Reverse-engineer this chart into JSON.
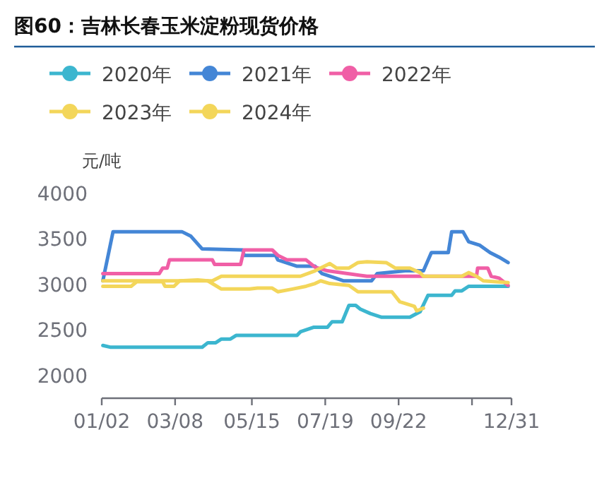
{
  "chart_data": {
    "type": "line",
    "title": "图60：吉林长春玉米淀粉现货价格",
    "ylabel": "元/吨",
    "xlim": [
      "--01-02",
      "--12-31"
    ],
    "xticks": [
      {
        "value": "--01-02",
        "label": "01/02"
      },
      {
        "value": "--03-08",
        "label": "03/08"
      },
      {
        "value": "--05-15",
        "label": "05/15"
      },
      {
        "value": "--07-19",
        "label": "07/19"
      },
      {
        "value": "--09-22",
        "label": "09/22"
      },
      {
        "value": "--11-26",
        "label": null
      },
      {
        "value": "--12-31",
        "label": "12/31"
      }
    ],
    "ylim": [
      1750,
      4000
    ],
    "yticks": [
      2000,
      2500,
      3000,
      3500,
      4000
    ],
    "grid": false,
    "legend": "top",
    "marker": "none",
    "line_style": "solid",
    "series": [
      {
        "name": "2020年",
        "color": "#3cb6cf",
        "x": [
          "--01-03",
          "--01-10",
          "--04-01",
          "--04-06",
          "--04-13",
          "--04-18",
          "--04-26",
          "--05-01",
          "--06-24",
          "--06-27",
          "--07-09",
          "--07-21",
          "--07-25",
          "--08-03",
          "--08-09",
          "--08-15",
          "--08-19",
          "--08-28",
          "--09-07",
          "--10-02",
          "--10-11",
          "--10-18",
          "--11-08",
          "--11-11",
          "--11-17",
          "--11-23",
          "--12-28"
        ],
        "values": [
          2330,
          2310,
          2310,
          2360,
          2360,
          2400,
          2400,
          2440,
          2440,
          2480,
          2530,
          2530,
          2590,
          2590,
          2770,
          2770,
          2730,
          2680,
          2640,
          2640,
          2700,
          2880,
          2880,
          2930,
          2930,
          2980,
          2980
        ]
      },
      {
        "name": "2021年",
        "color": "#4486d6",
        "x": [
          "--01-03",
          "--01-12",
          "--03-14",
          "--03-22",
          "--04-01",
          "--05-07",
          "--05-08",
          "--06-05",
          "--06-07",
          "--06-24",
          "--07-10",
          "--07-16",
          "--08-04",
          "--08-29",
          "--09-03",
          "--09-28",
          "--10-14",
          "--10-21",
          "--11-05",
          "--11-08",
          "--11-18",
          "--11-23",
          "--12-03",
          "--12-12",
          "--12-20",
          "--12-28"
        ],
        "values": [
          3040,
          3580,
          3580,
          3530,
          3390,
          3380,
          3320,
          3320,
          3270,
          3200,
          3200,
          3120,
          3040,
          3040,
          3120,
          3150,
          3150,
          3350,
          3350,
          3580,
          3580,
          3470,
          3430,
          3350,
          3300,
          3240
        ]
      },
      {
        "name": "2022年",
        "color": "#f05fa6",
        "x": [
          "--01-03",
          "--02-22",
          "--02-25",
          "--03-01",
          "--03-03",
          "--04-10",
          "--04-12",
          "--05-05",
          "--05-08",
          "--06-02",
          "--06-07",
          "--06-15",
          "--07-02",
          "--07-10",
          "--07-21",
          "--08-25",
          "--11-30",
          "--12-01",
          "--12-10",
          "--12-13",
          "--12-20",
          "--12-28"
        ],
        "values": [
          3120,
          3120,
          3180,
          3180,
          3270,
          3270,
          3220,
          3220,
          3380,
          3380,
          3320,
          3270,
          3270,
          3190,
          3150,
          3090,
          3090,
          3180,
          3180,
          3090,
          3070,
          2990
        ]
      },
      {
        "name": "2023年",
        "color": "#f3d65a",
        "x": [
          "--01-03",
          "--04-10",
          "--04-18",
          "--06-27",
          "--07-10",
          "--07-23",
          "--07-29",
          "--08-09",
          "--08-17",
          "--08-25",
          "--09-11",
          "--09-19",
          "--10-02",
          "--10-11",
          "--10-14",
          "--11-17",
          "--11-23",
          "--11-30",
          "--12-06",
          "--12-28"
        ],
        "values": [
          3040,
          3040,
          3090,
          3090,
          3150,
          3230,
          3180,
          3180,
          3240,
          3250,
          3240,
          3180,
          3180,
          3130,
          3090,
          3090,
          3130,
          3090,
          3040,
          3020
        ]
      },
      {
        "name": "2024年",
        "color": "#f3d65a",
        "x": [
          "--01-03",
          "--01-28",
          "--02-02",
          "--02-25",
          "--02-27",
          "--03-07",
          "--03-12",
          "--03-28",
          "--04-06",
          "--04-18",
          "--05-13",
          "--05-20",
          "--06-02",
          "--06-07",
          "--06-20",
          "--07-02",
          "--07-10",
          "--07-15",
          "--07-23",
          "--08-09",
          "--08-17",
          "--09-16",
          "--09-23",
          "--10-06",
          "--10-08",
          "--10-14"
        ],
        "values": [
          2980,
          2980,
          3030,
          3030,
          2980,
          2980,
          3040,
          3050,
          3040,
          2950,
          2950,
          2960,
          2960,
          2920,
          2950,
          2980,
          3010,
          3040,
          3010,
          2990,
          2920,
          2920,
          2810,
          2760,
          2710,
          2740
        ]
      }
    ]
  }
}
